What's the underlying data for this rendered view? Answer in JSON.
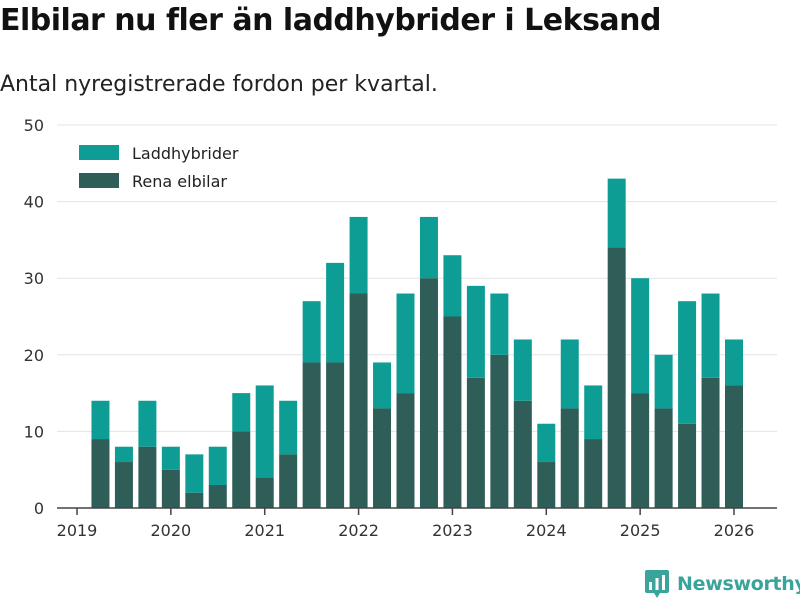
{
  "title": "Elbilar nu fler än laddhybrider i Leksand",
  "subtitle": "Antal nyregistrerade fordon per kvartal.",
  "brand": "Newsworthy",
  "colors": {
    "laddhybrider": "#0e9d94",
    "rena_elbilar": "#2f5d57",
    "grid": "#e3e3e3",
    "axis": "#444444"
  },
  "chart_data": {
    "type": "bar",
    "stacked": true,
    "title": "Elbilar nu fler än laddhybrider i Leksand",
    "subtitle": "Antal nyregistrerade fordon per kvartal.",
    "xlabel": "",
    "ylabel": "",
    "ylim": [
      0,
      50
    ],
    "yticks": [
      0,
      10,
      20,
      30,
      40,
      50
    ],
    "xticks": [
      {
        "label": "2019",
        "at": 2019.0
      },
      {
        "label": "2020",
        "at": 2020.0
      },
      {
        "label": "2021",
        "at": 2021.0
      },
      {
        "label": "2022",
        "at": 2022.0
      },
      {
        "label": "2023",
        "at": 2023.0
      },
      {
        "label": "2024",
        "at": 2024.0
      },
      {
        "label": "2025",
        "at": 2025.0
      },
      {
        "label": "2026",
        "at": 2026.0
      }
    ],
    "categories": [
      "2019 Q2",
      "2019 Q3",
      "2019 Q4",
      "2020 Q1",
      "2020 Q2",
      "2020 Q3",
      "2020 Q4",
      "2021 Q1",
      "2021 Q2",
      "2021 Q3",
      "2021 Q4",
      "2022 Q1",
      "2022 Q2",
      "2022 Q3",
      "2022 Q4",
      "2023 Q1",
      "2023 Q2",
      "2023 Q3",
      "2023 Q4",
      "2024 Q1",
      "2024 Q2",
      "2024 Q3",
      "2024 Q4",
      "2025 Q1",
      "2025 Q2",
      "2025 Q3",
      "2025 Q4",
      "2026 Q1"
    ],
    "x": [
      2019.25,
      2019.5,
      2019.75,
      2020.0,
      2020.25,
      2020.5,
      2020.75,
      2021.0,
      2021.25,
      2021.5,
      2021.75,
      2022.0,
      2022.25,
      2022.5,
      2022.75,
      2023.0,
      2023.25,
      2023.5,
      2023.75,
      2024.0,
      2024.25,
      2024.5,
      2024.75,
      2025.0,
      2025.25,
      2025.5,
      2025.75,
      2026.0
    ],
    "legend_position": "top-left",
    "series": [
      {
        "name": "Laddhybrider",
        "key": "laddhybrider",
        "values": [
          5,
          2,
          6,
          3,
          5,
          5,
          5,
          12,
          7,
          8,
          13,
          10,
          6,
          13,
          8,
          8,
          12,
          8,
          8,
          5,
          9,
          7,
          9,
          15,
          7,
          16,
          11,
          6
        ]
      },
      {
        "name": "Rena elbilar",
        "key": "rena_elbilar",
        "values": [
          9,
          6,
          8,
          5,
          2,
          3,
          10,
          4,
          7,
          19,
          19,
          28,
          13,
          15,
          30,
          25,
          17,
          20,
          14,
          6,
          13,
          9,
          34,
          15,
          13,
          11,
          17,
          16
        ]
      }
    ]
  }
}
